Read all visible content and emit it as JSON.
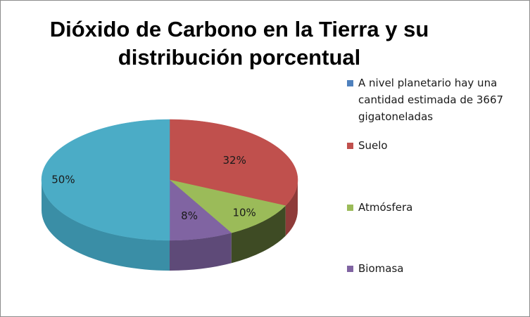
{
  "chart_data": {
    "type": "pie",
    "title": "Dióxido de Carbono en la Tierra y su distribución porcentual",
    "legend_position": "right",
    "categories": [
      "A nivel planetario hay una cantidad estimada de 3667 gigatoneladas",
      "Suelo",
      "Atmósfera",
      "Biomasa",
      ""
    ],
    "values": [
      0,
      32,
      10,
      8,
      50
    ],
    "labels": [
      "",
      "32%",
      "10%",
      "8%",
      "50%"
    ],
    "colors": [
      "#4f81bd",
      "#c0504d",
      "#9bbb59",
      "#8064a2",
      "#4bacc6"
    ],
    "side_colors": [
      "#3a5f8c",
      "#8e3b39",
      "#3e4b24",
      "#5e4a78",
      "#3a8ea6"
    ]
  }
}
